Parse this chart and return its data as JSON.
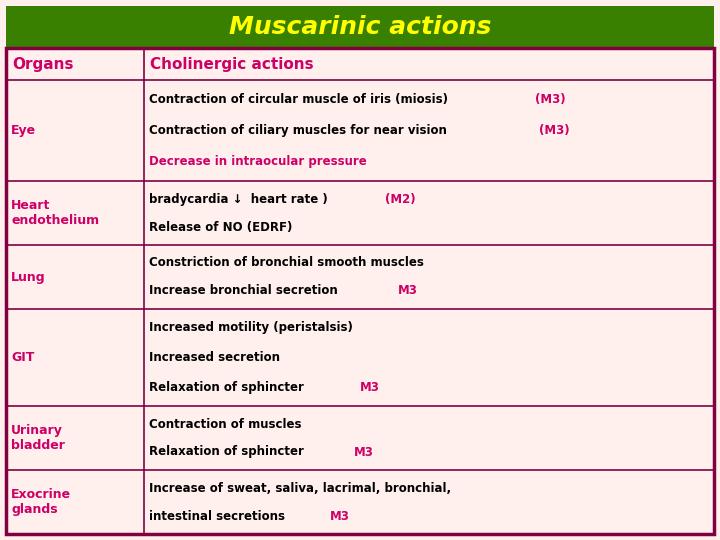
{
  "title": "Muscarinic actions",
  "title_color": "#FFFF00",
  "title_bg": "#3a8000",
  "background_color": "#fff0ee",
  "border_color": "#800040",
  "header_organs": "Organs",
  "header_actions": "Cholinergic actions",
  "header_color": "#cc0066",
  "col1_color": "#cc0066",
  "rows": [
    {
      "organ": "Eye",
      "organ_color": "#cc0066",
      "lines": [
        [
          {
            "t": "Contraction of circular muscle of iris (miosis)",
            "c": "#000000"
          },
          {
            "t": "(M3)",
            "c": "#cc0066"
          }
        ],
        [
          {
            "t": "Contraction of ciliary muscles for near vision ",
            "c": "#000000"
          },
          {
            "t": "(M3)",
            "c": "#cc0066"
          }
        ],
        [
          {
            "t": "Decrease in intraocular pressure",
            "c": "#cc0066"
          }
        ]
      ]
    },
    {
      "organ": "Heart\nendothelium",
      "organ_color": "#cc0066",
      "lines": [
        [
          {
            "t": "bradycardia ↓  heart rate ) ",
            "c": "#000000"
          },
          {
            "t": "(M2)",
            "c": "#cc0066"
          }
        ],
        [
          {
            "t": "Release of NO (EDRF)",
            "c": "#000000"
          }
        ]
      ]
    },
    {
      "organ": "Lung",
      "organ_color": "#cc0066",
      "lines": [
        [
          {
            "t": "Constriction of bronchial smooth muscles",
            "c": "#000000"
          }
        ],
        [
          {
            "t": "Increase bronchial secretion ",
            "c": "#000000"
          },
          {
            "t": "M3",
            "c": "#cc0066"
          }
        ]
      ]
    },
    {
      "organ": "GIT",
      "organ_color": "#cc0066",
      "lines": [
        [
          {
            "t": "Increased motility (peristalsis)",
            "c": "#000000"
          }
        ],
        [
          {
            "t": "Increased secretion",
            "c": "#000000"
          }
        ],
        [
          {
            "t": "Relaxation of sphincter  ",
            "c": "#000000"
          },
          {
            "t": "M3",
            "c": "#cc0066"
          }
        ]
      ]
    },
    {
      "organ": "Urinary\nbladder",
      "organ_color": "#cc0066",
      "lines": [
        [
          {
            "t": "Contraction of muscles",
            "c": "#000000"
          }
        ],
        [
          {
            "t": "Relaxation of sphincter ",
            "c": "#000000"
          },
          {
            "t": "M3",
            "c": "#cc0066"
          }
        ]
      ]
    },
    {
      "organ": "Exocrine\nglands",
      "organ_color": "#cc0066",
      "lines": [
        [
          {
            "t": "Increase of sweat, saliva, lacrimal, bronchial,",
            "c": "#000000"
          }
        ],
        [
          {
            "t": "intestinal secretions ",
            "c": "#000000"
          },
          {
            "t": "M3",
            "c": "#cc0066"
          }
        ]
      ]
    }
  ],
  "col_split": 0.195,
  "title_font": 18,
  "header_font": 11,
  "organ_font": 9,
  "body_font": 8.5
}
